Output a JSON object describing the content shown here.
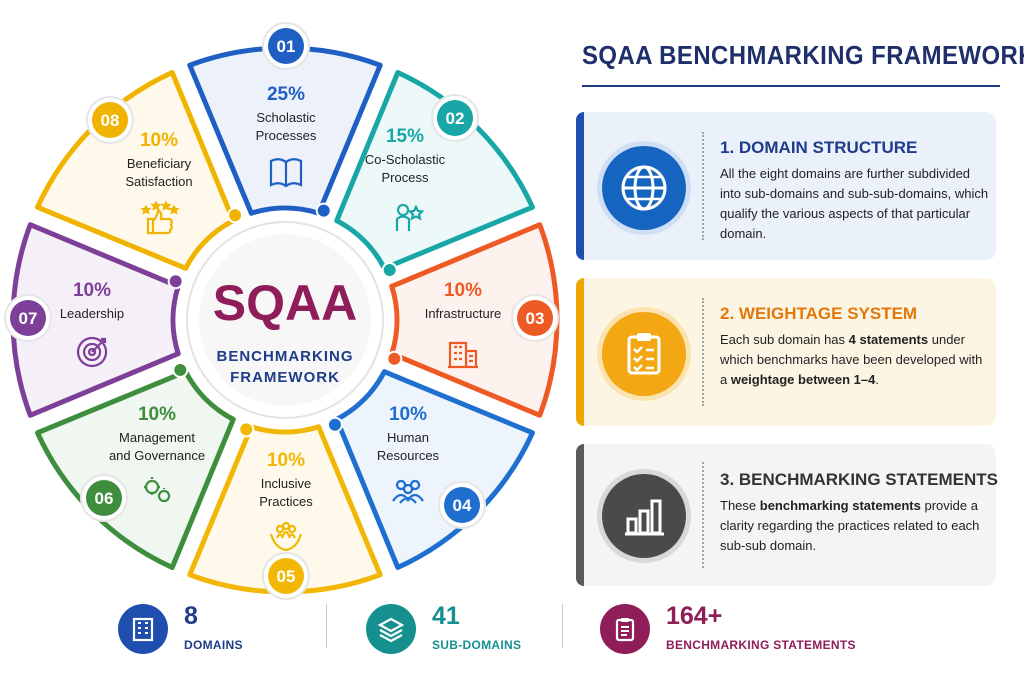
{
  "center": {
    "title": "SQAA",
    "subtitle_line1": "BENCHMARKING",
    "subtitle_line2": "FRAMEWORK"
  },
  "domains": [
    {
      "num": "01",
      "pct": "25%",
      "label_line1": "Scholastic",
      "label_line2": "Processes",
      "icon": "book-icon",
      "color": "#1f5fc4"
    },
    {
      "num": "02",
      "pct": "15%",
      "label_line1": "Co-Scholastic",
      "label_line2": "Process",
      "icon": "person-star-icon",
      "color": "#18a6a6"
    },
    {
      "num": "03",
      "pct": "10%",
      "label_line1": "Infrastructure",
      "label_line2": "",
      "icon": "building-icon",
      "color": "#ee5a24"
    },
    {
      "num": "04",
      "pct": "10%",
      "label_line1": "Human",
      "label_line2": "Resources",
      "icon": "people-icon",
      "color": "#1f6fd1"
    },
    {
      "num": "05",
      "pct": "10%",
      "label_line1": "Inclusive",
      "label_line2": "Practices",
      "icon": "hands-people-icon",
      "color": "#f2b705"
    },
    {
      "num": "06",
      "pct": "10%",
      "label_line1": "Management",
      "label_line2": "and Governance",
      "icon": "gears-icon",
      "color": "#3e8e3e"
    },
    {
      "num": "07",
      "pct": "10%",
      "label_line1": "Leadership",
      "label_line2": "",
      "icon": "target-icon",
      "color": "#7e3f98"
    },
    {
      "num": "08",
      "pct": "10%",
      "label_line1": "Beneficiary",
      "label_line2": "Satisfaction",
      "icon": "thumbs-up-stars-icon",
      "color": "#f0b400"
    }
  ],
  "right": {
    "title": "SQAA BENCHMARKING FRAMEWORK",
    "cards": [
      {
        "title": "1. DOMAIN STRUCTURE",
        "icon": "globe-icon",
        "body": "All the eight domains are further subdivided into sub-domains and sub-sub-domains, which qualify the various aspects of that particular domain."
      },
      {
        "title": "2. WEIGHTAGE SYSTEM",
        "icon": "clipboard-checklist-icon",
        "body_pre": "Each sub domain has ",
        "body_b1": "4 statements",
        "body_mid": " under which benchmarks have been developed with a ",
        "body_b2": "weightage between 1–4",
        "body_post": "."
      },
      {
        "title": "3. BENCHMARKING STATEMENTS",
        "icon": "bar-chart-icon",
        "body_pre": "These ",
        "body_b1": "benchmarking statements",
        "body_post": " provide a clarity regarding the practices related to each sub-sub domain."
      }
    ]
  },
  "stats": [
    {
      "num": "8",
      "label": "DOMAINS",
      "icon": "building-icon",
      "color": "#1f4fae"
    },
    {
      "num": "41",
      "label": "SUB-DOMAINS",
      "icon": "layers-icon",
      "color": "#168f8f"
    },
    {
      "num": "164+",
      "label": "BENCHMARKING STATEMENTS",
      "icon": "clipboard-icon",
      "color": "#8e1d5a"
    }
  ]
}
